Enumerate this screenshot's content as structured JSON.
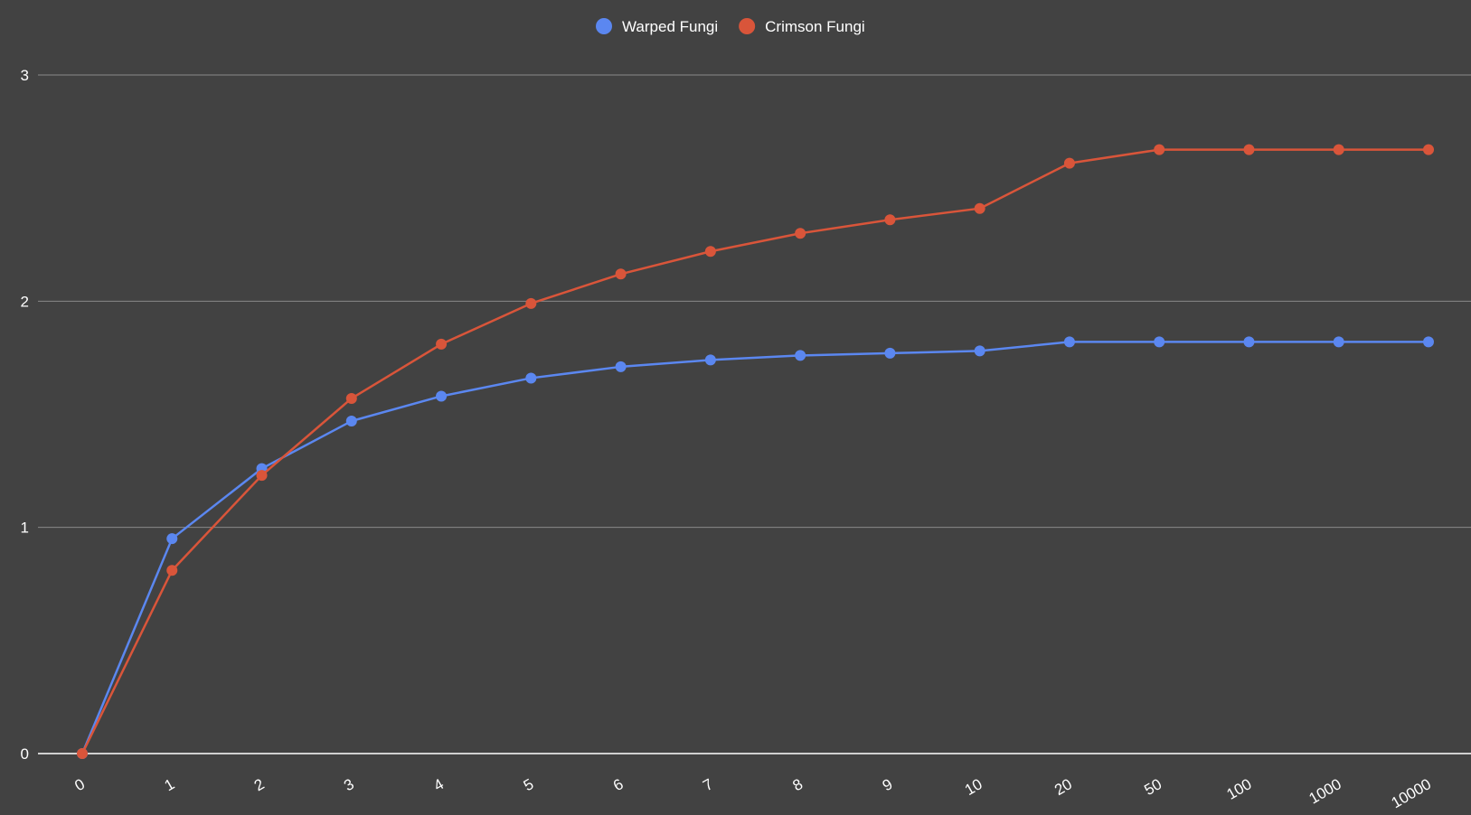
{
  "chart_data": {
    "type": "line",
    "title": "",
    "xlabel": "",
    "ylabel": "",
    "categories": [
      "0",
      "1",
      "2",
      "3",
      "4",
      "5",
      "6",
      "7",
      "8",
      "9",
      "10",
      "20",
      "50",
      "100",
      "1000",
      "10000"
    ],
    "series": [
      {
        "name": "Warped Fungi",
        "color": "#5b87f0",
        "values": [
          0,
          0.95,
          1.26,
          1.47,
          1.58,
          1.66,
          1.71,
          1.74,
          1.76,
          1.77,
          1.78,
          1.82,
          1.82,
          1.82,
          1.82,
          1.82
        ]
      },
      {
        "name": "Crimson Fungi",
        "color": "#d9553a",
        "values": [
          0,
          0.81,
          1.23,
          1.57,
          1.81,
          1.99,
          2.12,
          2.22,
          2.3,
          2.36,
          2.41,
          2.61,
          2.67,
          2.67,
          2.67,
          2.67
        ]
      }
    ],
    "ylim": [
      0,
      3
    ],
    "yticks": [
      "0",
      "1",
      "2",
      "3"
    ],
    "grid": true,
    "legend_position": "top-center",
    "colors": {
      "background": "#424242",
      "text": "#ffffff",
      "grid": "#8a8a8a"
    }
  }
}
